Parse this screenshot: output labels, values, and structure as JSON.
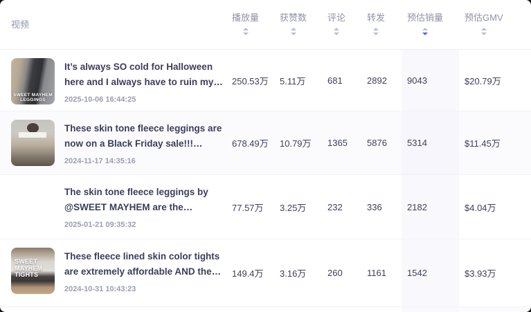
{
  "colors": {
    "accent_sort": "#5d61e4",
    "column_highlight": "#f8f8fd",
    "header_text": "#8f92a8",
    "body_text": "#3b3e5a"
  },
  "table": {
    "columns": [
      {
        "label": "视频",
        "sortable": false,
        "sort": "none"
      },
      {
        "label": "播放量",
        "sortable": true,
        "sort": "none"
      },
      {
        "label": "获赞数",
        "sortable": true,
        "sort": "none"
      },
      {
        "label": "评论",
        "sortable": true,
        "sort": "none"
      },
      {
        "label": "转发",
        "sortable": true,
        "sort": "none"
      },
      {
        "label": "预估销量",
        "sortable": true,
        "sort": "desc"
      },
      {
        "label": "预估GMV",
        "sortable": true,
        "sort": "none"
      }
    ],
    "rows": [
      {
        "title": "It’s always SO cold for Halloween here and I always have to ruin my…",
        "date": "2025-10-06 16:44:25",
        "thumb_caption": "SWEET MAYHEM LEGGINGS",
        "plays": "250.53万",
        "likes": "5.11万",
        "comments": "681",
        "shares": "2892",
        "sales": "9043",
        "gmv": "$20.79万"
      },
      {
        "title": "These skin tone fleece leggings are now on a Black Friday sale!!! They’…",
        "date": "2024-11-17 14:35:16",
        "thumb_caption": "",
        "plays": "678.49万",
        "likes": "10.79万",
        "comments": "1365",
        "shares": "5876",
        "sales": "5314",
        "gmv": "$11.45万"
      },
      {
        "title": "The skin tone fleece leggings by @SWEET MAYHEM are the original…",
        "date": "2025-01-21 09:35:32",
        "thumb_caption": "",
        "plays": "77.57万",
        "likes": "3.25万",
        "comments": "232",
        "shares": "336",
        "sales": "2182",
        "gmv": "$4.04万"
      },
      {
        "title": "These fleece lined skin color tights are extremely affordable AND the…",
        "date": "2024-10-31 10:43:23",
        "thumb_caption": "SWEET MAYHEM TIGHTS",
        "plays": "149.4万",
        "likes": "3.16万",
        "comments": "260",
        "shares": "1161",
        "sales": "1542",
        "gmv": "$3.93万"
      }
    ]
  }
}
